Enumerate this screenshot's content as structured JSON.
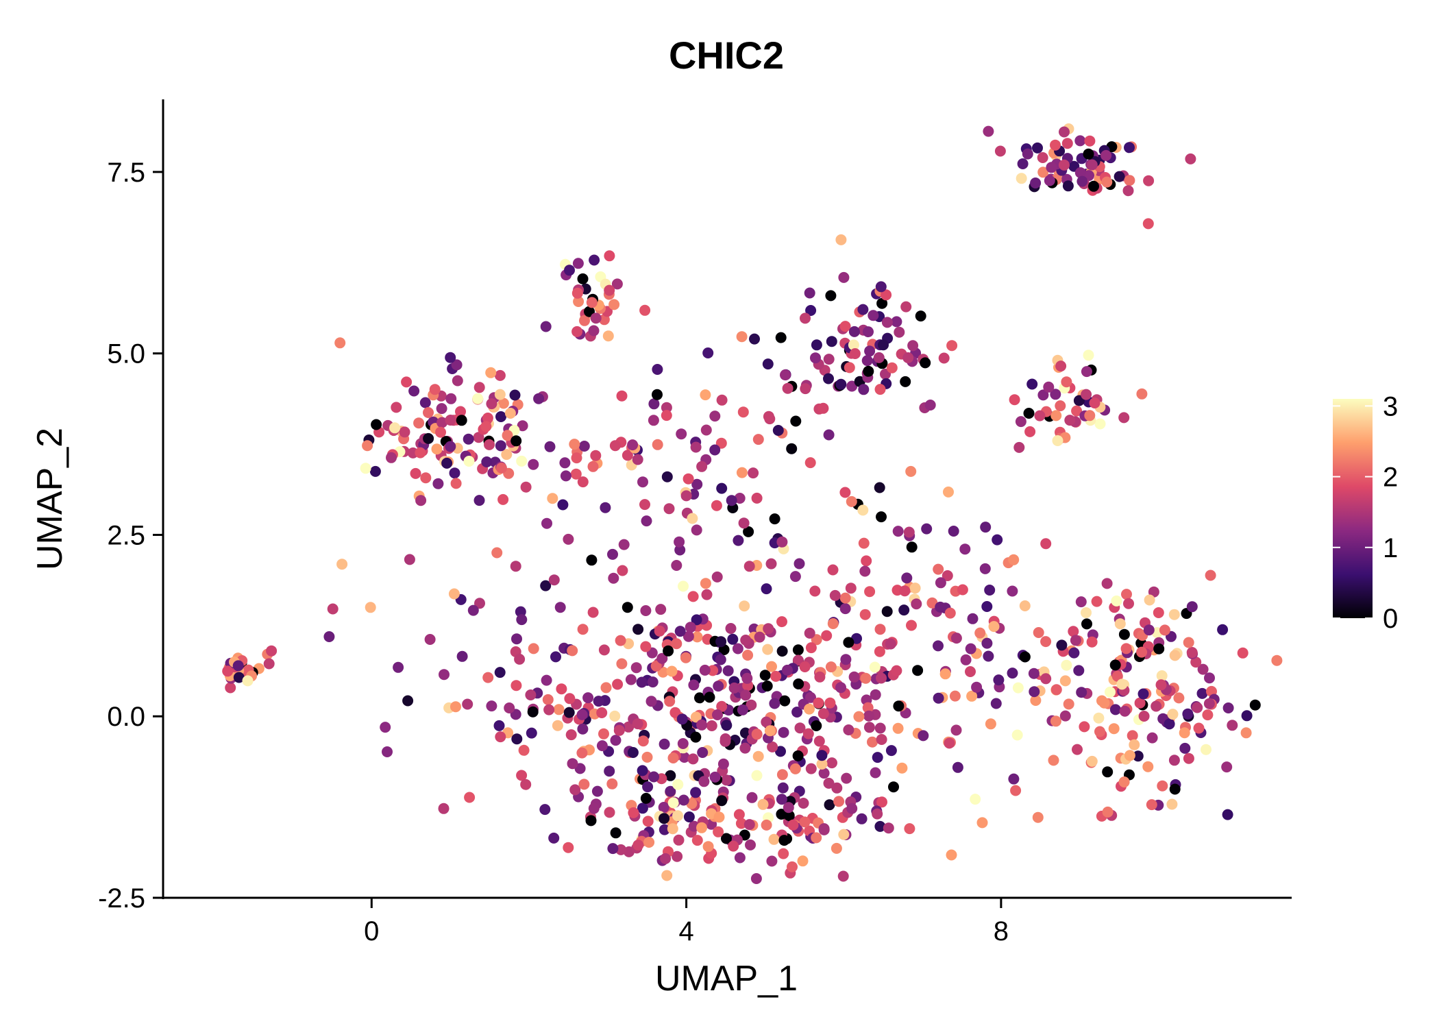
{
  "chart_data": {
    "type": "scatter",
    "title": "CHIC2",
    "xlabel": "UMAP_1",
    "ylabel": "UMAP_2",
    "xlim": [
      -2.65,
      11.65
    ],
    "ylim": [
      -2.5,
      8.5
    ],
    "x_ticks": [
      0,
      4,
      8
    ],
    "x_tick_labels": [
      "0",
      "4",
      "8"
    ],
    "y_ticks": [
      -2.5,
      0.0,
      2.5,
      5.0,
      7.5
    ],
    "y_tick_labels": [
      "-2.5",
      "0.0",
      "2.5",
      "5.0",
      "7.5"
    ],
    "color_scale": {
      "name": "magma",
      "min": 0,
      "max": 3.1,
      "ticks": [
        0,
        1,
        2,
        3
      ],
      "tick_labels": [
        "0",
        "1",
        "2",
        "3"
      ],
      "stops": [
        "#000004",
        "#3b0f70",
        "#8c2981",
        "#de4968",
        "#fe9f6d",
        "#fcfdbf"
      ]
    },
    "clusters": [
      {
        "name": "far-left",
        "cx": -1.6,
        "cy": 0.65,
        "sx": 0.2,
        "sy": 0.12,
        "n": 28,
        "mean": 1.7
      },
      {
        "name": "top-right",
        "cx": 9.0,
        "cy": 7.55,
        "sx": 0.45,
        "sy": 0.22,
        "n": 70,
        "mean": 1.5
      },
      {
        "name": "right-mid",
        "cx": 8.9,
        "cy": 4.3,
        "sx": 0.35,
        "sy": 0.35,
        "n": 45,
        "mean": 1.9
      },
      {
        "name": "right-lower",
        "cx": 9.7,
        "cy": 0.4,
        "sx": 0.75,
        "sy": 0.75,
        "n": 180,
        "mean": 1.9
      },
      {
        "name": "upper-center",
        "cx": 6.2,
        "cy": 5.0,
        "sx": 0.45,
        "sy": 0.5,
        "n": 85,
        "mean": 1.1
      },
      {
        "name": "upper-left-small",
        "cx": 2.8,
        "cy": 5.7,
        "sx": 0.25,
        "sy": 0.28,
        "n": 35,
        "mean": 2.0
      },
      {
        "name": "left-blob",
        "cx": 1.1,
        "cy": 3.9,
        "sx": 0.55,
        "sy": 0.45,
        "n": 120,
        "mean": 1.9
      },
      {
        "name": "mid-band",
        "cx": 3.8,
        "cy": 3.5,
        "sx": 1.1,
        "sy": 0.7,
        "n": 90,
        "mean": 1.6
      },
      {
        "name": "main-body",
        "cx": 4.5,
        "cy": 0.3,
        "sx": 1.8,
        "sy": 1.05,
        "n": 520,
        "mean": 1.5
      },
      {
        "name": "lower-arc",
        "cx": 4.8,
        "cy": -1.5,
        "sx": 1.1,
        "sy": 0.25,
        "n": 90,
        "mean": 1.7
      },
      {
        "name": "bridge",
        "cx": 7.3,
        "cy": 1.7,
        "sx": 0.5,
        "sy": 0.6,
        "n": 40,
        "mean": 1.5
      }
    ]
  }
}
